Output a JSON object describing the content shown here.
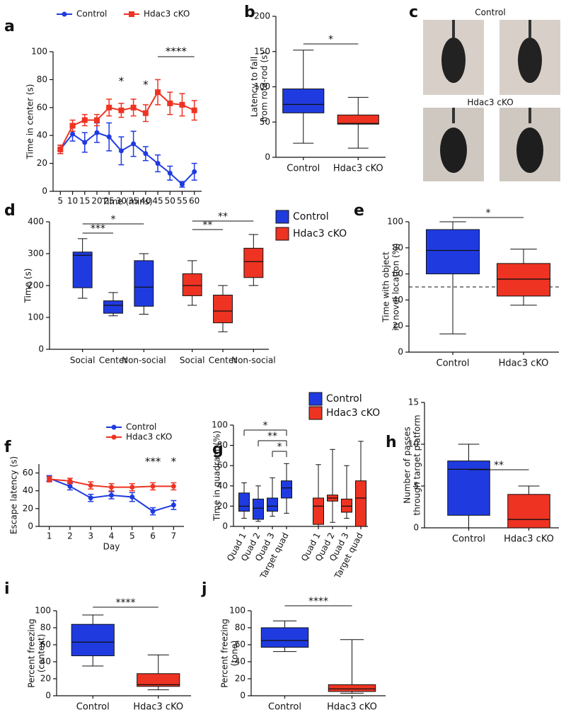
{
  "chart_data": [
    {
      "panel": "a",
      "type": "line",
      "xlabel": "Time (mins)",
      "ylabel": [
        "Time in center (s)"
      ],
      "x": [
        5,
        10,
        15,
        20,
        25,
        30,
        35,
        40,
        45,
        50,
        55,
        60
      ],
      "xlim": [
        2,
        63
      ],
      "xticks": [
        5,
        10,
        15,
        20,
        25,
        30,
        35,
        40,
        45,
        50,
        55,
        60
      ],
      "ylim": [
        0,
        100
      ],
      "yticks": [
        0,
        20,
        40,
        60,
        80,
        100
      ],
      "series": [
        {
          "name": "Control",
          "color": "#1f3be0",
          "marker": "circle",
          "values": [
            30,
            41,
            35,
            42,
            39,
            29,
            34,
            27,
            20,
            13,
            5,
            14
          ],
          "errors": [
            3,
            5,
            7,
            7,
            10,
            10,
            9,
            5,
            6,
            5,
            2,
            6
          ]
        },
        {
          "name": "Hdac3 cKO",
          "color": "#ee3322",
          "marker": "square",
          "values": [
            30,
            47,
            51,
            51,
            60,
            58,
            60,
            56,
            71,
            63,
            62,
            58
          ],
          "errors": [
            3,
            4,
            4,
            4,
            6,
            5,
            6,
            6,
            9,
            8,
            8,
            7
          ]
        }
      ],
      "annotations": [
        {
          "text": "*",
          "x": 30
        },
        {
          "text": "*",
          "x": 40
        },
        {
          "text": "****",
          "from": 45,
          "to": 60
        }
      ]
    },
    {
      "panel": "b",
      "type": "box",
      "ylabel": [
        "Latency to fall",
        "from rota-rod (s)"
      ],
      "ylim": [
        0,
        200
      ],
      "yticks": [
        0,
        50,
        100,
        150,
        200
      ],
      "series": [
        {
          "name": "Control",
          "color": "#1f3be0",
          "min": [
            20
          ],
          "q1": [
            63
          ],
          "median": [
            75
          ],
          "q3": [
            97
          ],
          "max": [
            152
          ]
        },
        {
          "name": "Hdac3 cKO",
          "color": "#ee3322",
          "min": [
            13
          ],
          "q1": [
            47
          ],
          "median": [
            48
          ],
          "q3": [
            60
          ],
          "max": [
            85
          ]
        }
      ],
      "annotations": [
        {
          "text": "*",
          "from": 0,
          "to": 1
        }
      ]
    },
    {
      "panel": "d",
      "type": "box",
      "ylabel": [
        "Time (s)"
      ],
      "ylim": [
        0,
        400
      ],
      "yticks": [
        0,
        100,
        200,
        300,
        400
      ],
      "categories": [
        "Social",
        "Center",
        "Non-social"
      ],
      "legend": true,
      "series": [
        {
          "name": "Control",
          "color": "#1f3be0",
          "min": [
            160,
            105,
            110
          ],
          "q1": [
            193,
            113,
            135
          ],
          "median": [
            295,
            138,
            195
          ],
          "q3": [
            305,
            152,
            278
          ],
          "max": [
            347,
            178,
            300
          ]
        },
        {
          "name": "Hdac3 cKO",
          "color": "#ee3322",
          "min": [
            138,
            55,
            200
          ],
          "q1": [
            168,
            83,
            225
          ],
          "median": [
            200,
            120,
            275
          ],
          "q3": [
            237,
            170,
            317
          ],
          "max": [
            278,
            200,
            360
          ]
        }
      ],
      "annotations": [
        {
          "text": "***",
          "from": 0,
          "to": 1
        },
        {
          "text": "*",
          "from": 0,
          "to": 2
        },
        {
          "text": "**",
          "from": 3,
          "to": 4
        },
        {
          "text": "**",
          "from": 3,
          "to": 5
        }
      ]
    },
    {
      "panel": "e",
      "type": "box",
      "ylabel": [
        "Time with object",
        "in novel location (%)"
      ],
      "ylim": [
        0,
        100
      ],
      "yticks": [
        0,
        20,
        40,
        60,
        80,
        100
      ],
      "reference_line": 50,
      "series": [
        {
          "name": "Control",
          "color": "#1f3be0",
          "min": [
            14
          ],
          "q1": [
            60
          ],
          "median": [
            78
          ],
          "q3": [
            94
          ],
          "max": [
            100
          ]
        },
        {
          "name": "Hdac3 cKO",
          "color": "#ee3322",
          "min": [
            36
          ],
          "q1": [
            43
          ],
          "median": [
            56
          ],
          "q3": [
            68
          ],
          "max": [
            79
          ]
        }
      ],
      "annotations": [
        {
          "text": "*",
          "from": 0,
          "to": 1
        }
      ]
    },
    {
      "panel": "f",
      "type": "line",
      "xlabel": "Day",
      "ylabel": [
        "Escape latency (s)"
      ],
      "x": [
        1,
        2,
        3,
        4,
        5,
        6,
        7
      ],
      "xlim": [
        0.5,
        7.5
      ],
      "xticks": [
        1,
        2,
        3,
        4,
        5,
        6,
        7
      ],
      "ylim": [
        0,
        70
      ],
      "yticks": [
        0,
        20,
        40,
        60
      ],
      "series": [
        {
          "name": "Control",
          "color": "#1f3be0",
          "marker": "circle",
          "values": [
            54,
            45,
            32,
            35,
            33,
            17,
            24
          ],
          "errors": [
            3,
            4,
            4,
            4,
            5,
            4,
            5
          ]
        },
        {
          "name": "Hdac3 cKO",
          "color": "#ee3322",
          "marker": "circle",
          "values": [
            53,
            51,
            46,
            44,
            44,
            45,
            45
          ],
          "errors": [
            3,
            3,
            4,
            4,
            4,
            4,
            4
          ]
        }
      ],
      "annotations": [
        {
          "text": "***",
          "x": 6
        },
        {
          "text": "*",
          "x": 7
        }
      ]
    },
    {
      "panel": "g",
      "type": "box",
      "ylabel": [
        "Time in quadrant (%)"
      ],
      "ylim": [
        0,
        100
      ],
      "yticks": [
        0,
        20,
        40,
        60,
        80,
        100
      ],
      "categories": [
        "Quad 1",
        "Quad 2",
        "Quad 3",
        "Target quad"
      ],
      "legend": true,
      "series": [
        {
          "name": "Control",
          "color": "#1f3be0",
          "min": [
            8,
            5,
            10,
            13
          ],
          "q1": [
            15,
            7,
            15,
            28
          ],
          "median": [
            20,
            18,
            20,
            38
          ],
          "q3": [
            33,
            27,
            28,
            45
          ],
          "max": [
            43,
            40,
            48,
            62
          ]
        },
        {
          "name": "Hdac3 cKO",
          "color": "#ee3322",
          "min": [
            0,
            4,
            8,
            0
          ],
          "q1": [
            2,
            25,
            14,
            0
          ],
          "median": [
            20,
            28,
            20,
            28
          ],
          "q3": [
            28,
            31,
            27,
            45
          ],
          "max": [
            61,
            76,
            60,
            84
          ]
        }
      ],
      "annotations": [
        {
          "text": "*",
          "from": 0,
          "to": 3
        },
        {
          "text": "**",
          "from": 1,
          "to": 3
        },
        {
          "text": "*",
          "from": 2,
          "to": 3
        }
      ]
    },
    {
      "panel": "h",
      "type": "box",
      "ylabel": [
        "Number of passes",
        "through target platform"
      ],
      "ylim": [
        0,
        15
      ],
      "yticks": [
        0,
        5,
        10,
        15
      ],
      "series": [
        {
          "name": "Control",
          "color": "#1f3be0",
          "min": [
            0
          ],
          "q1": [
            1.5
          ],
          "median": [
            7
          ],
          "q3": [
            8
          ],
          "max": [
            10
          ]
        },
        {
          "name": "Hdac3 cKO",
          "color": "#ee3322",
          "min": [
            0
          ],
          "q1": [
            0
          ],
          "median": [
            1
          ],
          "q3": [
            4
          ],
          "max": [
            5
          ]
        }
      ],
      "annotations": [
        {
          "text": "**",
          "from": 0,
          "to": 1
        }
      ]
    },
    {
      "panel": "i",
      "type": "box",
      "ylabel": [
        "Percent freezing",
        "(context)"
      ],
      "ylim": [
        0,
        100
      ],
      "yticks": [
        0,
        20,
        40,
        60,
        80,
        100
      ],
      "series": [
        {
          "name": "Control",
          "color": "#1f3be0",
          "min": [
            35
          ],
          "q1": [
            47
          ],
          "median": [
            63
          ],
          "q3": [
            84
          ],
          "max": [
            95
          ]
        },
        {
          "name": "Hdac3 cKO",
          "color": "#ee3322",
          "min": [
            7
          ],
          "q1": [
            11
          ],
          "median": [
            13
          ],
          "q3": [
            26
          ],
          "max": [
            48
          ]
        }
      ],
      "annotations": [
        {
          "text": "****",
          "from": 0,
          "to": 1
        }
      ]
    },
    {
      "panel": "j",
      "type": "box",
      "ylabel": [
        "Percent freezing",
        "(tone)"
      ],
      "ylim": [
        0,
        100
      ],
      "yticks": [
        0,
        20,
        40,
        60,
        80,
        100
      ],
      "series": [
        {
          "name": "Control",
          "color": "#1f3be0",
          "min": [
            52
          ],
          "q1": [
            57
          ],
          "median": [
            65
          ],
          "q3": [
            80
          ],
          "max": [
            88
          ]
        },
        {
          "name": "Hdac3 cKO",
          "color": "#ee3322",
          "min": [
            3
          ],
          "q1": [
            5
          ],
          "median": [
            8
          ],
          "q3": [
            13
          ],
          "max": [
            66
          ]
        }
      ],
      "annotations": [
        {
          "text": "****",
          "from": 0,
          "to": 1
        }
      ]
    }
  ],
  "photos": {
    "panel": "c",
    "labels": [
      "Control",
      "Hdac3 cKO"
    ]
  }
}
